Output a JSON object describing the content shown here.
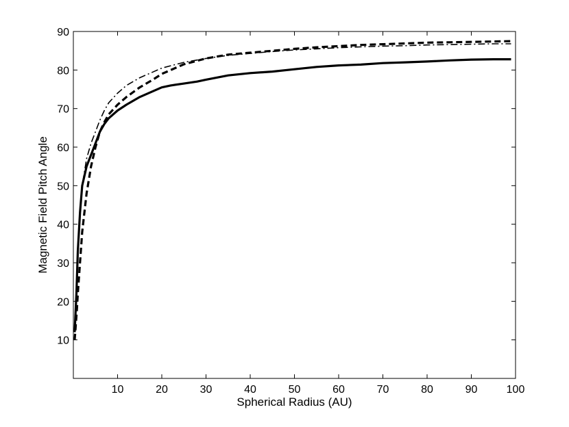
{
  "chart_data": {
    "type": "line",
    "title": "",
    "xlabel": "Spherical Radius (AU)",
    "ylabel": "Magnetic Field Pitch Angle",
    "xlim": [
      0,
      100
    ],
    "ylim": [
      0,
      90
    ],
    "xticks": [
      "10",
      "20",
      "30",
      "40",
      "50",
      "60",
      "70",
      "80",
      "90",
      "100"
    ],
    "yticks": [
      "10",
      "20",
      "30",
      "40",
      "50",
      "60",
      "70",
      "80",
      "90"
    ],
    "grid": false,
    "legend": "none",
    "series": [
      {
        "style": "solid",
        "color": "#000000",
        "x": [
          0.3,
          0.5,
          0.7,
          1,
          1.5,
          2,
          3,
          4,
          5,
          6,
          7,
          8,
          10,
          12,
          15,
          18,
          20,
          22,
          25,
          28,
          30,
          35,
          40,
          45,
          50,
          55,
          60,
          65,
          70,
          75,
          80,
          85,
          90,
          95,
          99
        ],
        "y": [
          12,
          17,
          22,
          33,
          43,
          50,
          55,
          58,
          61,
          64,
          66,
          67.5,
          69.5,
          71,
          73,
          74.5,
          75.5,
          76,
          76.5,
          77,
          77.5,
          78.6,
          79.2,
          79.6,
          80.2,
          80.8,
          81.2,
          81.4,
          81.8,
          82,
          82.2,
          82.5,
          82.7,
          82.8,
          82.8
        ]
      },
      {
        "style": "dashed",
        "color": "#000000",
        "x": [
          0.3,
          0.5,
          0.8,
          1,
          1.5,
          2,
          3,
          4,
          5,
          6,
          7,
          8,
          10,
          12,
          15,
          18,
          20,
          25,
          30,
          35,
          40,
          45,
          50,
          55,
          60,
          65,
          70,
          75,
          80,
          85,
          90,
          95,
          99
        ],
        "y": [
          10,
          13,
          18,
          22,
          30,
          38,
          48,
          55,
          60,
          64,
          66.5,
          68.5,
          71,
          73,
          75.5,
          77.5,
          79,
          81.5,
          83,
          84,
          84.5,
          85,
          85.5,
          85.9,
          86.2,
          86.5,
          86.7,
          86.9,
          87.1,
          87.2,
          87.3,
          87.4,
          87.5
        ]
      },
      {
        "style": "dash-dot",
        "color": "#000000",
        "x": [
          0.3,
          0.5,
          0.8,
          1,
          1.5,
          2,
          3,
          4,
          5,
          6,
          7,
          8,
          10,
          12,
          15,
          18,
          20,
          25,
          30,
          35,
          40,
          45,
          50,
          55,
          60,
          65,
          70,
          75,
          80,
          85,
          90,
          95,
          99
        ],
        "y": [
          12,
          18,
          26,
          32,
          42,
          50,
          57,
          61,
          64,
          67,
          69.5,
          71.5,
          74,
          76,
          78,
          79.5,
          80.5,
          82,
          83,
          83.8,
          84.3,
          84.8,
          85.2,
          85.5,
          85.8,
          86,
          86.2,
          86.3,
          86.5,
          86.6,
          86.7,
          86.8,
          86.8
        ]
      }
    ]
  }
}
